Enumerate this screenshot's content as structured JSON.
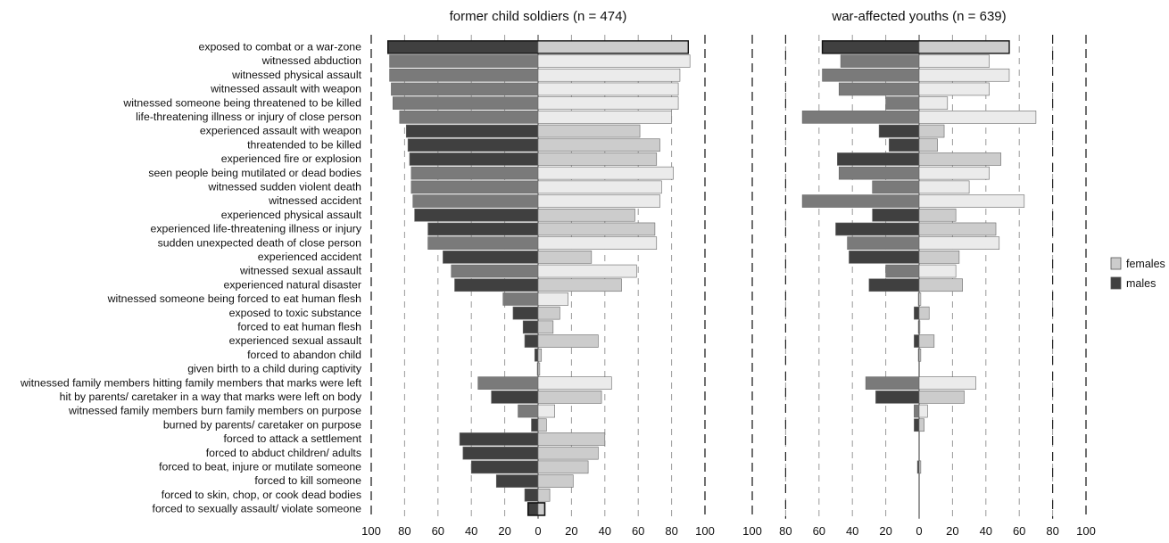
{
  "chart_data": [
    {
      "type": "bar",
      "orientation": "horizontal-diverging",
      "title": "former child soldiers (n = 474)",
      "categories": [
        "exposed to combat or a war-zone",
        "witnessed abduction",
        "witnessed physical assault",
        "witnessed assault with weapon",
        "witnessed someone being threatened to be killed",
        "life-threatening illness or injury of close person",
        "experienced assault with weapon",
        "threatended to be killed",
        "experienced fire or explosion",
        "seen people being mutilated or dead bodies",
        "witnessed sudden violent death",
        "witnessed accident",
        "experienced physical assault",
        "experienced life-threatening illness or injury",
        "sudden unexpected death of close person",
        "experienced accident",
        "witnessed sexual assault",
        "experienced natural disaster",
        "witnessed someone being forced to eat human flesh",
        "exposed to toxic substance",
        "forced to eat human flesh",
        "experienced sexual assault",
        "forced to abandon child",
        "given birth to a child during captivity",
        "witnessed family members hitting family members that marks were left",
        "hit by parents/ caretaker in a way that marks were left on body",
        "witnessed family members burn family members on purpose",
        "burned by parents/ caretaker on purpose",
        "forced to attack a settlement",
        "forced to abduct children/ adults",
        "forced to beat, injure or mutilate someone",
        "forced to kill someone",
        "forced to skin, chop, or cook dead bodies",
        "forced to sexually assault/ violate someone"
      ],
      "series": [
        {
          "name": "males",
          "values": [
            90,
            89,
            89,
            88,
            87,
            83,
            79,
            78,
            77,
            76,
            76,
            75,
            74,
            66,
            66,
            57,
            52,
            50,
            21,
            15,
            9,
            8,
            2,
            0,
            36,
            28,
            12,
            4,
            47,
            45,
            40,
            25,
            8,
            6
          ]
        },
        {
          "name": "females",
          "values": [
            90,
            91,
            85,
            84,
            84,
            80,
            61,
            73,
            71,
            81,
            74,
            73,
            58,
            70,
            71,
            32,
            59,
            50,
            18,
            13,
            9,
            36,
            2,
            1,
            44,
            38,
            10,
            5,
            40,
            36,
            30,
            21,
            7,
            4
          ]
        }
      ],
      "highlight": [
        "none",
        "hatch",
        "hatch",
        "hatch",
        "hatch",
        "hatch",
        "none",
        "none",
        "none",
        "hatch",
        "hatch",
        "hatch",
        "none",
        "none",
        "hatch",
        "none",
        "hatch",
        "none",
        "hatch",
        "none",
        "none",
        "none",
        "none",
        "none",
        "hatch",
        "none",
        "hatch",
        "none",
        "none",
        "none",
        "none",
        "none",
        "none",
        "boxed"
      ],
      "xlim": [
        -100,
        100
      ],
      "xticks": [
        "100",
        "80",
        "60",
        "40",
        "20",
        "0",
        "20",
        "40",
        "60",
        "80",
        "100"
      ],
      "grid": "vertical-dashed"
    },
    {
      "type": "bar",
      "orientation": "horizontal-diverging",
      "title": "war-affected youths (n = 639)",
      "series": [
        {
          "name": "males",
          "values": [
            58,
            47,
            58,
            48,
            20,
            70,
            24,
            18,
            49,
            48,
            28,
            70,
            28,
            50,
            43,
            42,
            20,
            30,
            0,
            3,
            0,
            3,
            0,
            null,
            32,
            26,
            3,
            3,
            null,
            null,
            1,
            null,
            null,
            null
          ]
        },
        {
          "name": "females",
          "values": [
            54,
            42,
            54,
            42,
            17,
            70,
            15,
            11,
            49,
            42,
            30,
            63,
            22,
            46,
            48,
            24,
            22,
            26,
            1,
            6,
            0,
            9,
            1,
            null,
            34,
            27,
            5,
            3,
            null,
            null,
            1,
            null,
            null,
            null
          ]
        }
      ],
      "xlim": [
        -100,
        100
      ],
      "xticks": [
        "100",
        "80",
        "60",
        "40",
        "20",
        "0",
        "20",
        "40",
        "60",
        "80",
        "100"
      ],
      "grid": "vertical-dashed"
    }
  ],
  "legend": {
    "placement": "right",
    "items": [
      {
        "label": "females",
        "color": "#cccccc"
      },
      {
        "label": "males",
        "color": "#404040"
      }
    ]
  },
  "colors": {
    "dark": "#404040",
    "mid": "#7a7a7a",
    "light": "#cccccc",
    "pale": "#ebebeb",
    "edge": "#666666",
    "grid": "#9a9a9a"
  }
}
